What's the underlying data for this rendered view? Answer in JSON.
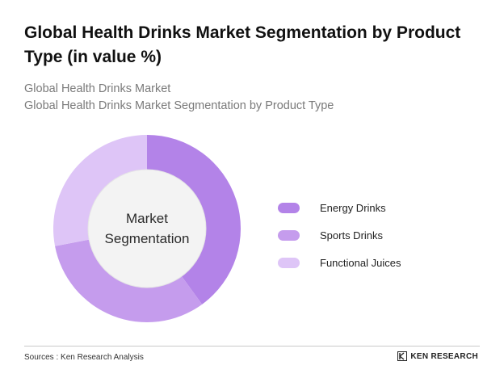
{
  "title": "Global Health Drinks Market Segmentation by Product Type (in value %)",
  "subtitle": {
    "line1": "Global Health Drinks Market",
    "line2": "Global Health Drinks Market Segmentation by Product Type"
  },
  "center_label": {
    "line1": "Market",
    "line2": "Segmentation"
  },
  "chart_data": {
    "type": "pie",
    "donut": true,
    "categories": [
      "Energy Drinks",
      "Sports Drinks",
      "Functional Juices"
    ],
    "values": [
      40,
      32,
      28
    ],
    "colors": [
      "#b383e8",
      "#c59ced",
      "#dec5f7"
    ],
    "legend_position": "right"
  },
  "footer": {
    "source": "Sources : Ken Research Analysis",
    "brand": "KEN RESEARCH"
  }
}
